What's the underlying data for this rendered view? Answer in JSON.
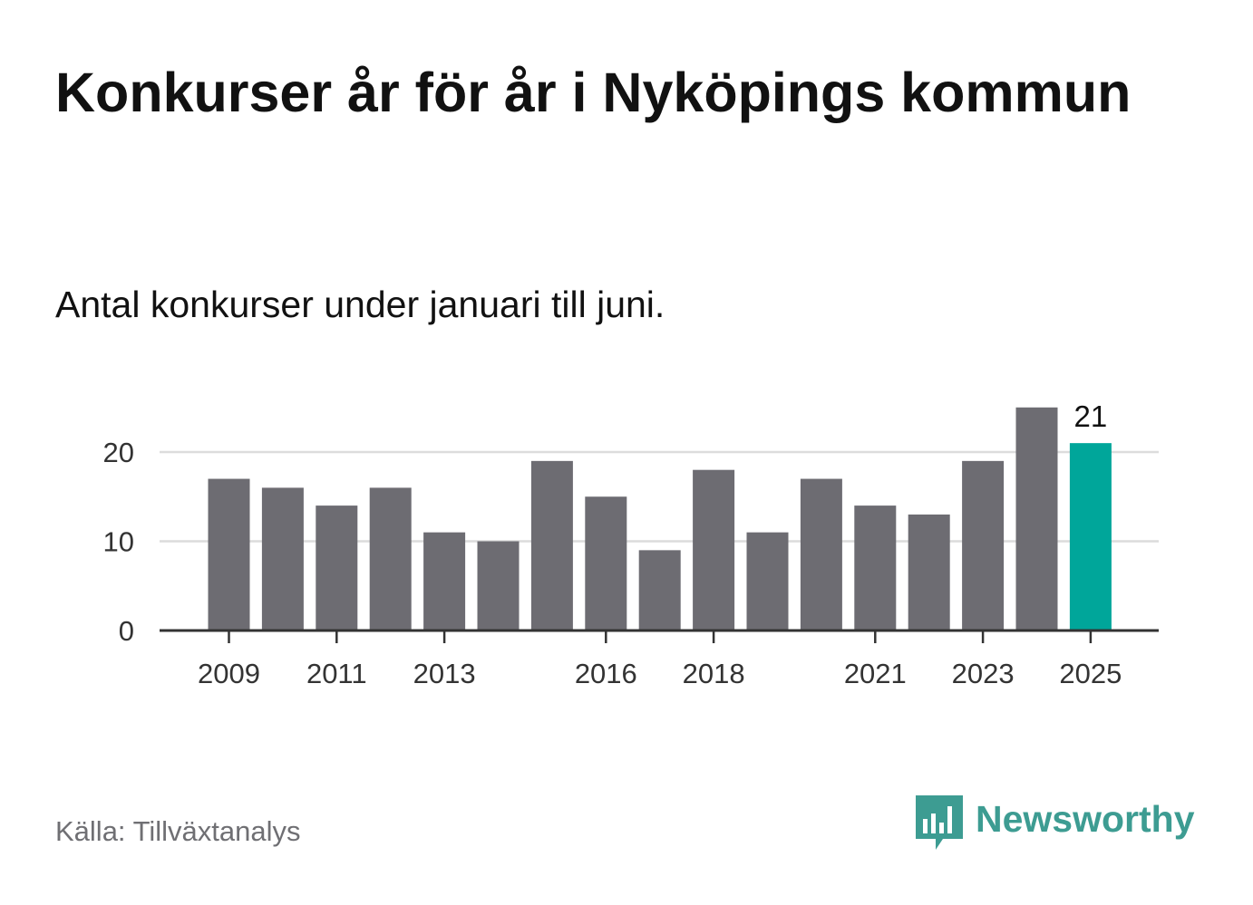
{
  "title": "Konkurser år för år i Nyköpings kommun",
  "subtitle": "Antal konkurser under januari till juni.",
  "source": "Källa: Tillväxtanalys",
  "brand": {
    "name": "Newsworthy",
    "icon": "bar-chart-speech-bubble-icon",
    "color": "#3d9c92"
  },
  "colors": {
    "bar": "#6d6c72",
    "highlight": "#00a69a",
    "grid": "#dcdcdc",
    "axis": "#333333"
  },
  "chart_data": {
    "type": "bar",
    "categories": [
      "2009",
      "2010",
      "2011",
      "2012",
      "2013",
      "2014",
      "2015",
      "2016",
      "2017",
      "2018",
      "2019",
      "2020",
      "2021",
      "2022",
      "2023",
      "2024",
      "2025"
    ],
    "values": [
      17,
      16,
      14,
      16,
      11,
      10,
      19,
      15,
      9,
      18,
      11,
      17,
      14,
      13,
      19,
      25,
      21
    ],
    "highlight_index": 16,
    "data_labels": [
      {
        "index": 16,
        "text": "21"
      }
    ],
    "x_tick_labels": [
      "2009",
      "2011",
      "2013",
      "2016",
      "2018",
      "2021",
      "2023",
      "2025"
    ],
    "y_ticks": [
      0,
      10,
      20
    ],
    "ylim": [
      0,
      26
    ],
    "grid": true,
    "xlabel": "",
    "ylabel": ""
  }
}
